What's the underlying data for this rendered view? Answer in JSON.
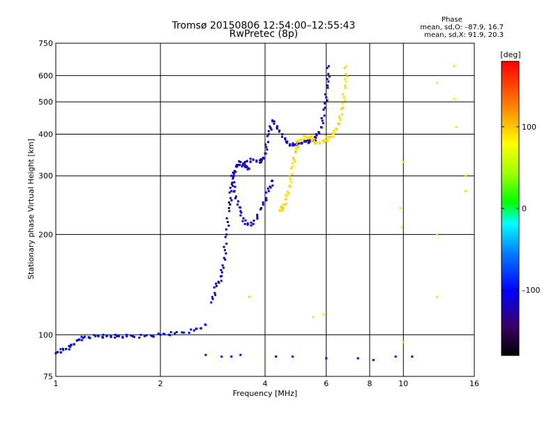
{
  "header": {
    "title": "Tromsø 20150806 12:54:00–12:55:43",
    "subtitle": "RwPretec (8p)",
    "phase_heading": "Phase",
    "phase_line1": "mean, sd,O: –87.9, 16.7",
    "phase_line2": "mean, sd,X:  91.9, 20.3"
  },
  "colorbar": {
    "label": "[deg]",
    "ticks": [
      "100",
      "0",
      "–100"
    ],
    "tick_values": [
      100,
      0,
      -100
    ],
    "range": [
      -180,
      180
    ],
    "colormap": "rainbow"
  },
  "chart_data": {
    "type": "scatter",
    "xlabel": "Frequency [MHz]",
    "ylabel": "Stationary phase Virtual Height [km]",
    "xscale": "log",
    "yscale": "log",
    "xlim": [
      1,
      16
    ],
    "ylim": [
      75,
      750
    ],
    "xticks": [
      1,
      2,
      4,
      6,
      8,
      10,
      16
    ],
    "xtick_labels": [
      "1",
      "2",
      "4",
      "6",
      "8",
      "10",
      "16"
    ],
    "yticks": [
      75,
      100,
      200,
      300,
      400,
      500,
      600,
      750
    ],
    "ytick_labels": [
      "75",
      "100",
      "200",
      "300",
      "400",
      "500",
      "600",
      "750"
    ],
    "grid": true,
    "series": [
      {
        "phase_deg": -95,
        "points": [
          [
            1.0,
            88
          ],
          [
            1.05,
            90
          ],
          [
            1.1,
            92
          ],
          [
            1.15,
            96
          ],
          [
            1.2,
            98
          ],
          [
            1.3,
            99
          ],
          [
            1.4,
            99
          ],
          [
            1.5,
            99
          ],
          [
            1.6,
            99
          ],
          [
            1.8,
            99
          ],
          [
            2.0,
            100
          ],
          [
            2.2,
            101
          ],
          [
            2.5,
            103
          ],
          [
            2.7,
            107
          ]
        ]
      },
      {
        "phase_deg": -110,
        "points": [
          [
            2.8,
            125
          ],
          [
            2.9,
            140
          ],
          [
            3.0,
            150
          ],
          [
            3.05,
            170
          ],
          [
            3.1,
            200
          ],
          [
            3.15,
            240
          ],
          [
            3.2,
            270
          ],
          [
            3.25,
            300
          ],
          [
            3.3,
            320
          ],
          [
            3.4,
            330
          ],
          [
            3.5,
            320
          ],
          [
            3.6,
            315
          ]
        ]
      },
      {
        "phase_deg": -110,
        "points": [
          [
            3.2,
            300
          ],
          [
            3.3,
            260
          ],
          [
            3.4,
            235
          ],
          [
            3.5,
            215
          ],
          [
            3.7,
            215
          ],
          [
            3.9,
            240
          ],
          [
            4.1,
            270
          ],
          [
            4.2,
            290
          ]
        ]
      },
      {
        "phase_deg": -115,
        "points": [
          [
            3.5,
            330
          ],
          [
            3.7,
            335
          ],
          [
            3.9,
            330
          ],
          [
            4.0,
            350
          ],
          [
            4.1,
            400
          ],
          [
            4.2,
            440
          ],
          [
            4.4,
            410
          ],
          [
            4.6,
            380
          ],
          [
            4.8,
            370
          ],
          [
            5.0,
            375
          ],
          [
            5.2,
            380
          ],
          [
            5.4,
            380
          ],
          [
            5.6,
            390
          ],
          [
            5.8,
            420
          ],
          [
            5.95,
            480
          ],
          [
            6.05,
            560
          ],
          [
            6.1,
            640
          ]
        ]
      },
      {
        "phase_deg": 95,
        "points": [
          [
            4.4,
            235
          ],
          [
            4.5,
            240
          ],
          [
            4.6,
            255
          ],
          [
            4.7,
            280
          ],
          [
            4.8,
            320
          ],
          [
            4.9,
            355
          ],
          [
            5.0,
            380
          ],
          [
            5.2,
            395
          ],
          [
            5.4,
            390
          ],
          [
            5.6,
            375
          ],
          [
            5.9,
            380
          ],
          [
            6.1,
            390
          ],
          [
            6.3,
            400
          ],
          [
            6.5,
            430
          ],
          [
            6.7,
            480
          ],
          [
            6.8,
            560
          ],
          [
            6.85,
            640
          ]
        ]
      },
      {
        "phase_deg": -100,
        "points": [
          [
            2.7,
            87
          ],
          [
            3.0,
            86
          ],
          [
            3.2,
            86
          ],
          [
            3.4,
            87
          ],
          [
            4.3,
            86
          ],
          [
            4.8,
            86
          ],
          [
            6.0,
            85
          ],
          [
            7.4,
            85
          ],
          [
            8.2,
            84
          ],
          [
            9.5,
            86
          ],
          [
            10.6,
            86
          ]
        ]
      },
      {
        "phase_deg": 60,
        "points": [
          [
            3.6,
            130
          ],
          [
            5.9,
            115
          ],
          [
            5.5,
            113
          ],
          [
            10.0,
            330
          ],
          [
            10.0,
            95
          ],
          [
            12.5,
            570
          ],
          [
            12.5,
            200
          ],
          [
            12.5,
            130
          ],
          [
            14.0,
            640
          ],
          [
            14.0,
            510
          ],
          [
            14.2,
            420
          ],
          [
            15.1,
            300
          ],
          [
            15.1,
            270
          ],
          [
            9.8,
            240
          ],
          [
            9.9,
            210
          ]
        ]
      }
    ]
  }
}
